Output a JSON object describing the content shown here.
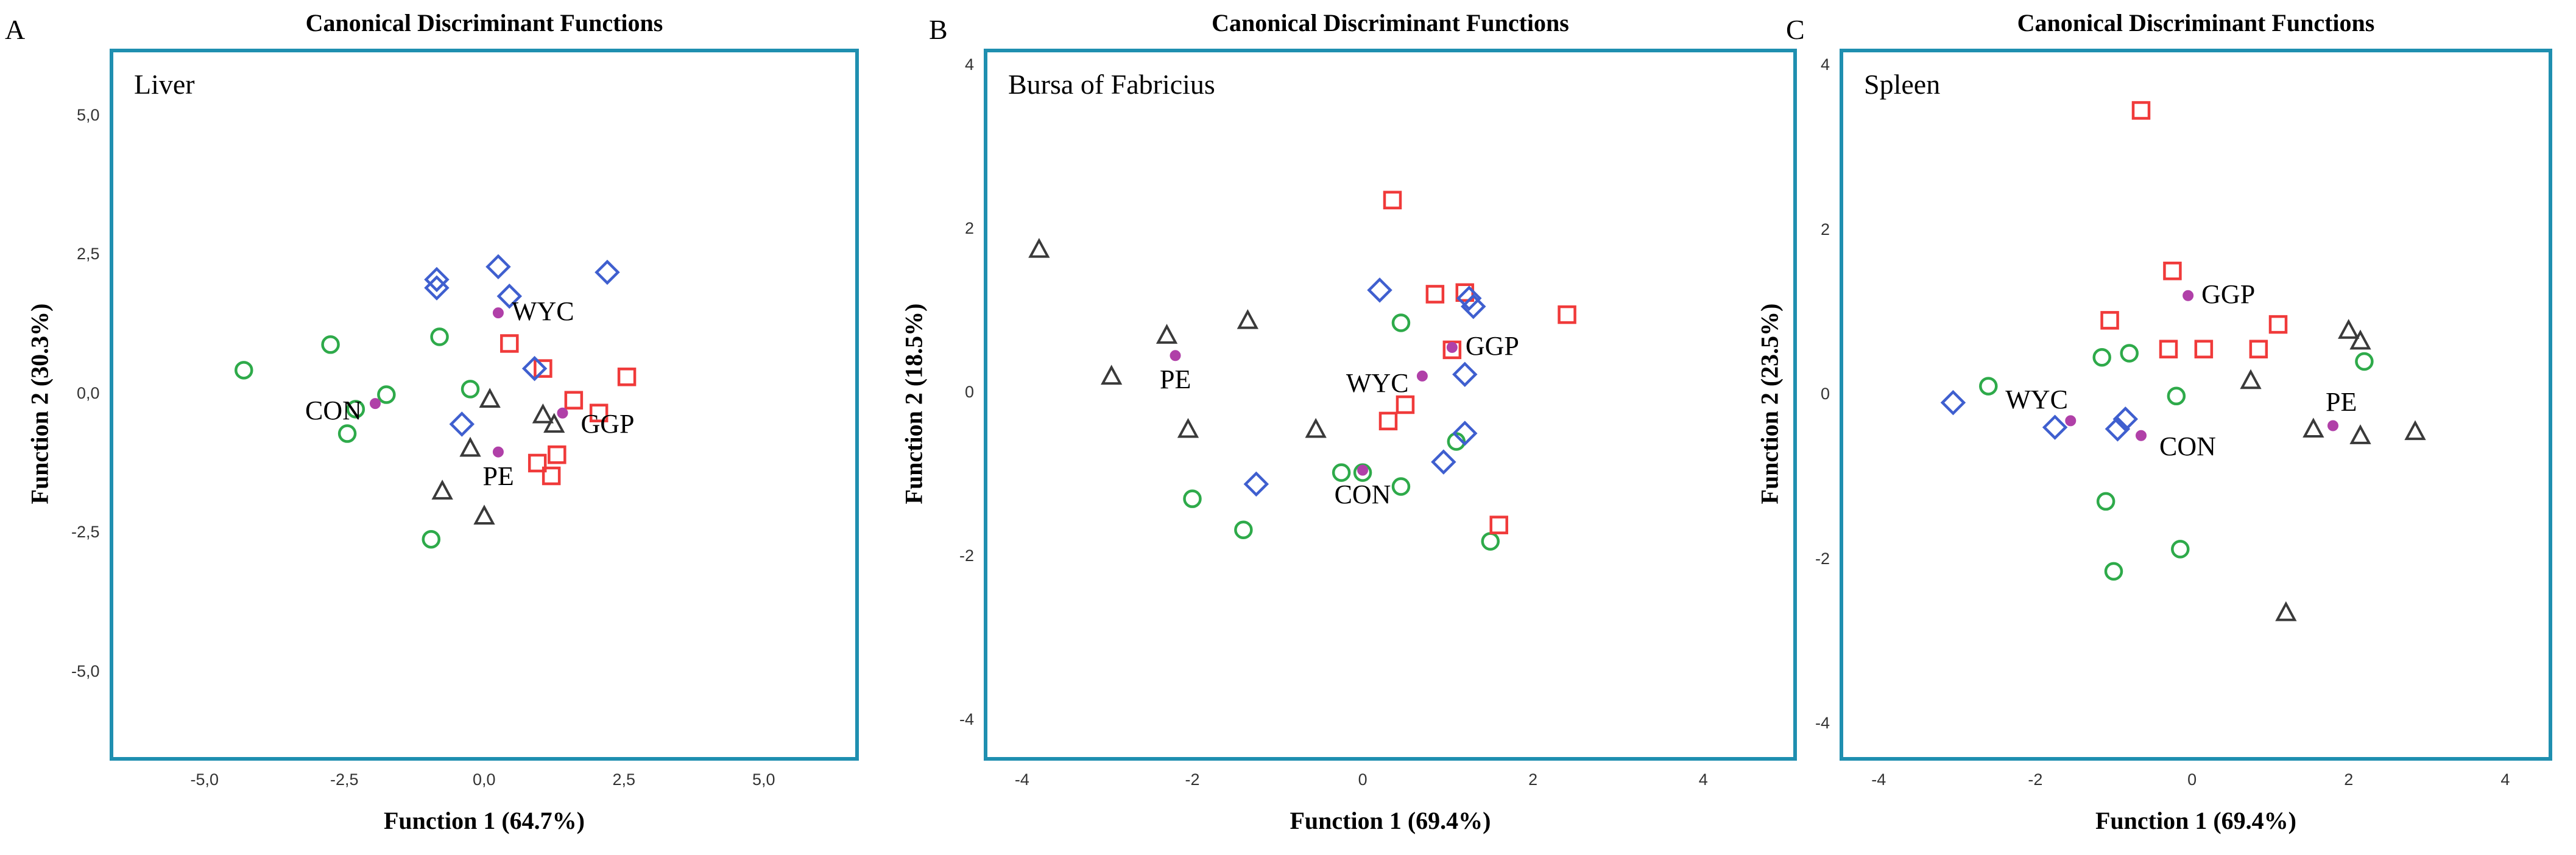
{
  "colors": {
    "frame": "#1f8fb0",
    "CON": "#2eaa4a",
    "GGP": "#f03a3a",
    "WYC": "#3f5fcf",
    "PE": "#3a3a3a",
    "centroid": "#b040a8"
  },
  "chart_data": [
    {
      "type": "scatter",
      "panel_letter": "A",
      "title": "Canonical Discriminant Functions",
      "subtitle": "Liver",
      "xlabel": "Function 1 (64.7%)",
      "ylabel": "Function 2 (30.3%)",
      "xlim": [
        -6.7,
        6.7
      ],
      "ylim": [
        -6.6,
        6.2
      ],
      "xticks": [
        -5,
        -2.5,
        0,
        2.5,
        5
      ],
      "xtick_labels": [
        "-5,0",
        "-2,5",
        "0,0",
        "2,5",
        "5,0"
      ],
      "yticks": [
        -5,
        -2.5,
        0,
        2.5,
        5
      ],
      "ytick_labels": [
        "-5,0",
        "-2,5",
        "0,0",
        "2,5",
        "5,0"
      ],
      "series": [
        {
          "name": "CON",
          "marker": "circle",
          "points": [
            [
              -4.3,
              0.42
            ],
            [
              -2.75,
              0.88
            ],
            [
              -2.45,
              -0.72
            ],
            [
              -2.3,
              -0.28
            ],
            [
              -1.75,
              -0.02
            ],
            [
              -0.8,
              1.02
            ],
            [
              -0.25,
              0.08
            ],
            [
              -0.95,
              -2.62
            ]
          ]
        },
        {
          "name": "GGP",
          "marker": "square",
          "points": [
            [
              0.45,
              0.9
            ],
            [
              1.05,
              0.45
            ],
            [
              1.6,
              -0.12
            ],
            [
              2.05,
              -0.35
            ],
            [
              2.55,
              0.3
            ],
            [
              0.95,
              -1.25
            ],
            [
              1.3,
              -1.1
            ],
            [
              1.2,
              -1.48
            ]
          ]
        },
        {
          "name": "WYC",
          "marker": "diamond",
          "points": [
            [
              -0.85,
              2.05
            ],
            [
              -0.85,
              1.9
            ],
            [
              0.25,
              2.28
            ],
            [
              0.45,
              1.75
            ],
            [
              2.2,
              2.18
            ],
            [
              0.9,
              0.45
            ],
            [
              -0.4,
              -0.55
            ]
          ]
        },
        {
          "name": "PE",
          "marker": "triangle",
          "points": [
            [
              0.1,
              -0.1
            ],
            [
              1.05,
              -0.38
            ],
            [
              1.25,
              -0.55
            ],
            [
              -0.25,
              -0.98
            ],
            [
              -0.75,
              -1.75
            ],
            [
              0.0,
              -2.2
            ]
          ]
        }
      ],
      "centroids": [
        {
          "name": "CON",
          "x": -1.95,
          "y": -0.18,
          "label": "CON",
          "label_pos": "left"
        },
        {
          "name": "GGP",
          "x": 1.4,
          "y": -0.35,
          "label": "GGP",
          "label_pos": "right-below"
        },
        {
          "name": "WYC",
          "x": 0.25,
          "y": 1.45,
          "label": "WYC",
          "label_pos": "right"
        },
        {
          "name": "PE",
          "x": 0.25,
          "y": -1.05,
          "label": "PE",
          "label_pos": "below"
        }
      ]
    },
    {
      "type": "scatter",
      "panel_letter": "B",
      "title": "Canonical Discriminant Functions",
      "subtitle": "Bursa of Fabricius",
      "xlabel": "Function 1 (69.4%)",
      "ylabel": "Function 2 (18.5%)",
      "xlim": [
        -4.45,
        5.1
      ],
      "ylim": [
        -4.5,
        4.2
      ],
      "xticks": [
        -4,
        -2,
        0,
        2,
        4
      ],
      "xtick_labels": [
        "-4",
        "-2",
        "0",
        "2",
        "4"
      ],
      "yticks": [
        -4,
        -2,
        0,
        2,
        4
      ],
      "ytick_labels": [
        "-4",
        "-2",
        "0",
        "2",
        "4"
      ],
      "series": [
        {
          "name": "CON",
          "marker": "circle",
          "points": [
            [
              -2.0,
              -1.3
            ],
            [
              -1.4,
              -1.68
            ],
            [
              -0.25,
              -0.98
            ],
            [
              0.0,
              -0.98
            ],
            [
              0.45,
              -1.15
            ],
            [
              0.45,
              0.85
            ],
            [
              1.1,
              -0.6
            ],
            [
              1.5,
              -1.82
            ]
          ]
        },
        {
          "name": "GGP",
          "marker": "square",
          "points": [
            [
              0.35,
              2.35
            ],
            [
              0.85,
              1.2
            ],
            [
              1.2,
              1.22
            ],
            [
              1.05,
              0.52
            ],
            [
              0.5,
              -0.15
            ],
            [
              0.3,
              -0.35
            ],
            [
              2.4,
              0.95
            ],
            [
              1.6,
              -1.62
            ]
          ]
        },
        {
          "name": "WYC",
          "marker": "diamond",
          "points": [
            [
              0.2,
              1.25
            ],
            [
              1.25,
              1.15
            ],
            [
              1.3,
              1.05
            ],
            [
              1.2,
              0.22
            ],
            [
              1.2,
              -0.5
            ],
            [
              0.95,
              -0.85
            ],
            [
              -1.25,
              -1.12
            ]
          ]
        },
        {
          "name": "PE",
          "marker": "triangle",
          "points": [
            [
              -3.8,
              1.75
            ],
            [
              -2.95,
              0.2
            ],
            [
              -2.3,
              0.7
            ],
            [
              -2.05,
              -0.45
            ],
            [
              -1.35,
              0.88
            ],
            [
              -0.55,
              -0.45
            ]
          ]
        }
      ],
      "centroids": [
        {
          "name": "CON",
          "x": 0.0,
          "y": -0.95,
          "label": "CON",
          "label_pos": "below"
        },
        {
          "name": "GGP",
          "x": 1.05,
          "y": 0.55,
          "label": "GGP",
          "label_pos": "right"
        },
        {
          "name": "WYC",
          "x": 0.7,
          "y": 0.2,
          "label": "WYC",
          "label_pos": "left"
        },
        {
          "name": "PE",
          "x": -2.2,
          "y": 0.45,
          "label": "PE",
          "label_pos": "below"
        }
      ]
    },
    {
      "type": "scatter",
      "panel_letter": "C",
      "title": "Canonical Discriminant Functions",
      "subtitle": "Spleen",
      "xlabel": "Function 1 (69.4%)",
      "ylabel": "Function 2 (23.5%)",
      "xlim": [
        -4.5,
        4.6
      ],
      "ylim": [
        -4.45,
        4.2
      ],
      "xticks": [
        -4,
        -2,
        0,
        2,
        4
      ],
      "xtick_labels": [
        "-4",
        "-2",
        "0",
        "2",
        "4"
      ],
      "yticks": [
        -4,
        -2,
        0,
        2,
        4
      ],
      "ytick_labels": [
        "-4",
        "-2",
        "0",
        "2",
        "4"
      ],
      "series": [
        {
          "name": "CON",
          "marker": "circle",
          "points": [
            [
              -2.6,
              0.1
            ],
            [
              -1.15,
              0.45
            ],
            [
              -0.8,
              0.5
            ],
            [
              -0.2,
              -0.02
            ],
            [
              -1.1,
              -1.3
            ],
            [
              -1.0,
              -2.15
            ],
            [
              -0.15,
              -1.88
            ],
            [
              2.2,
              0.4
            ]
          ]
        },
        {
          "name": "GGP",
          "marker": "square",
          "points": [
            [
              -0.65,
              3.45
            ],
            [
              -0.25,
              1.5
            ],
            [
              -1.05,
              0.9
            ],
            [
              -0.3,
              0.55
            ],
            [
              0.15,
              0.55
            ],
            [
              0.85,
              0.55
            ],
            [
              1.1,
              0.85
            ]
          ]
        },
        {
          "name": "WYC",
          "marker": "diamond",
          "points": [
            [
              -3.05,
              -0.1
            ],
            [
              -1.75,
              -0.4
            ],
            [
              -0.95,
              -0.42
            ],
            [
              -0.85,
              -0.3
            ]
          ]
        },
        {
          "name": "PE",
          "marker": "triangle",
          "points": [
            [
              0.75,
              0.17
            ],
            [
              1.55,
              -0.42
            ],
            [
              2.0,
              0.78
            ],
            [
              2.15,
              0.65
            ],
            [
              2.15,
              -0.5
            ],
            [
              2.85,
              -0.45
            ],
            [
              1.2,
              -2.65
            ]
          ]
        }
      ],
      "centroids": [
        {
          "name": "CON",
          "x": -0.65,
          "y": -0.5,
          "label": "CON",
          "label_pos": "right-below"
        },
        {
          "name": "GGP",
          "x": -0.05,
          "y": 1.2,
          "label": "GGP",
          "label_pos": "right"
        },
        {
          "name": "WYC",
          "x": -1.55,
          "y": -0.32,
          "label": "WYC",
          "label_pos": "above-left"
        },
        {
          "name": "PE",
          "x": 1.8,
          "y": -0.38,
          "label": "PE",
          "label_pos": "above-right"
        }
      ]
    }
  ]
}
